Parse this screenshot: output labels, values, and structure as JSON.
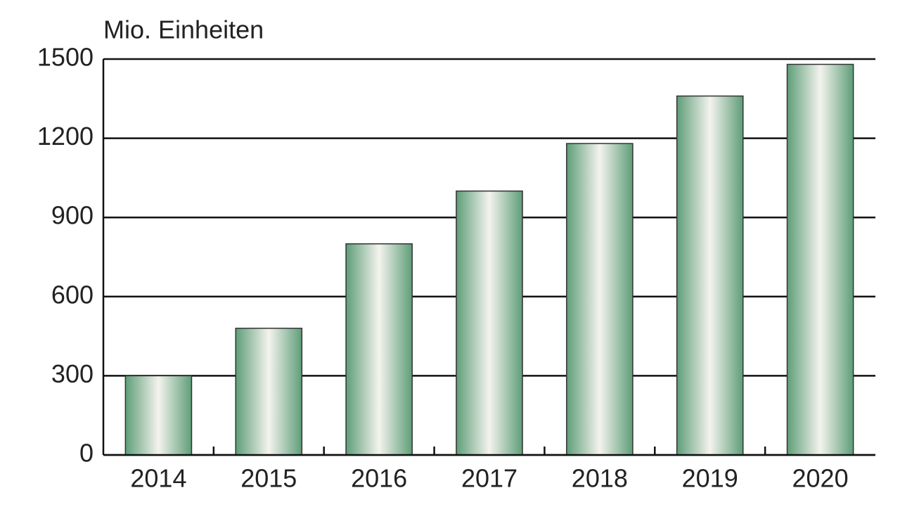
{
  "chart_data": {
    "type": "bar",
    "y_label": "Mio. Einheiten",
    "categories": [
      "2014",
      "2015",
      "2016",
      "2017",
      "2018",
      "2019",
      "2020"
    ],
    "values": [
      300,
      480,
      800,
      1000,
      1180,
      1360,
      1480
    ],
    "color": "#5e9e78",
    "ylim": [
      0,
      1500
    ],
    "yticks": [
      0,
      300,
      600,
      900,
      1200,
      1500
    ],
    "grid": true
  }
}
